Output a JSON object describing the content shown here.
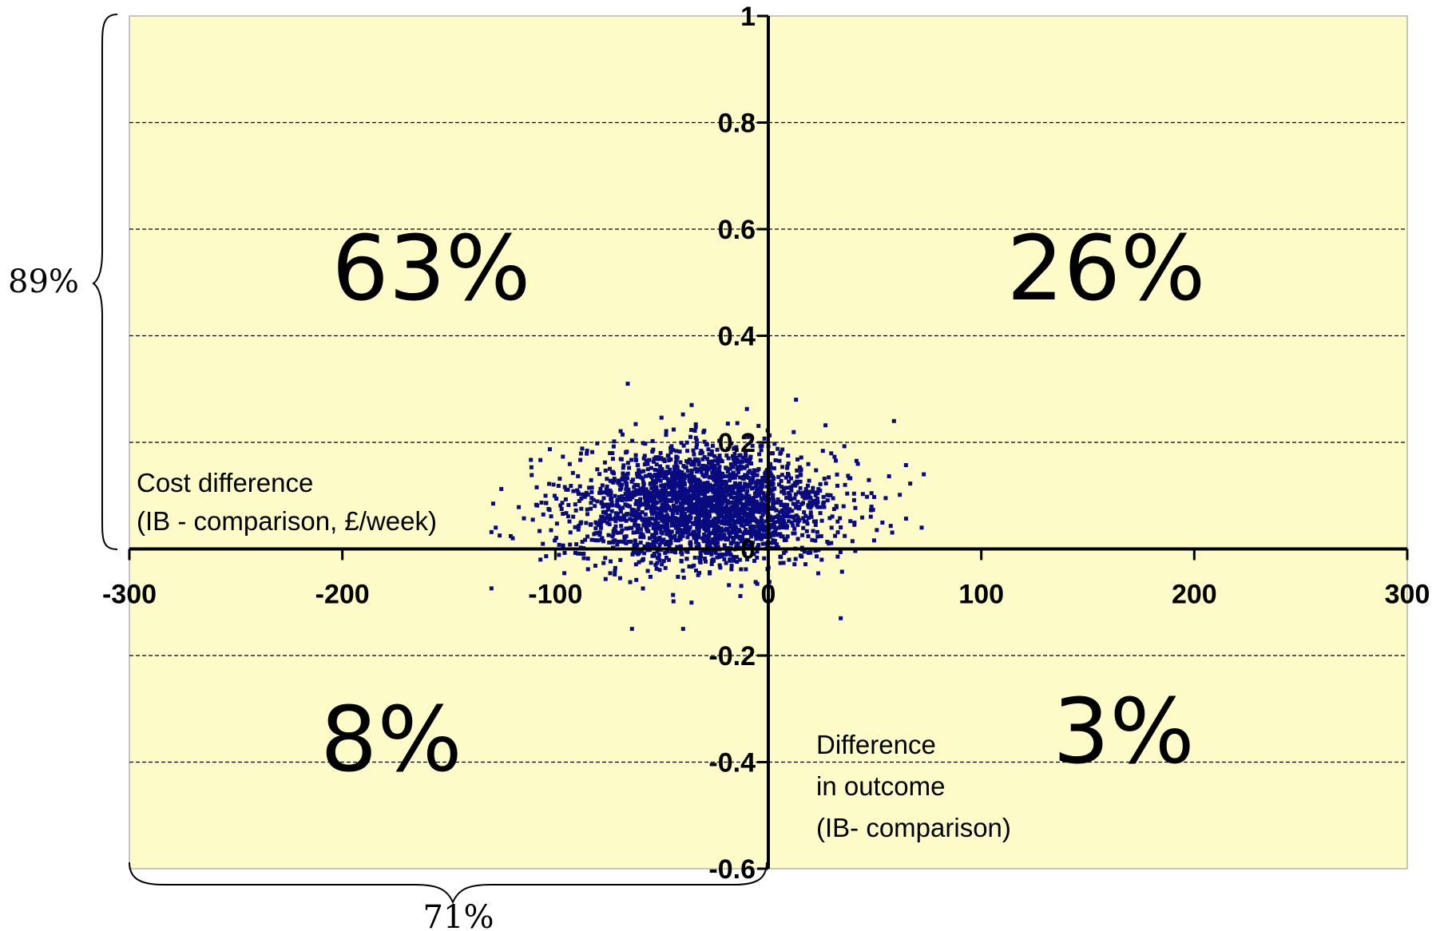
{
  "chart_data": {
    "type": "scatter",
    "title": "",
    "xlim": [
      -300,
      300
    ],
    "ylim": [
      -0.6,
      1
    ],
    "xticks": [
      -300,
      -200,
      -100,
      0,
      100,
      200,
      300
    ],
    "yticks": [
      1,
      0.8,
      0.6,
      0.4,
      0.2,
      0,
      -0.2,
      -0.4,
      -0.6
    ],
    "xtick_labels": [
      "-300",
      "-200",
      "-100",
      "0",
      "100",
      "200",
      "300"
    ],
    "ytick_labels": [
      "1",
      "0.8",
      "0.6",
      "0.4",
      "0.2",
      "0",
      "-0.2",
      "-0.4",
      "-0.6"
    ],
    "ylabel_lines": [
      "Cost difference",
      "(IB - comparison, £/week)"
    ],
    "xlabel_lines": [
      "Difference",
      "in outcome",
      "(IB- comparison)"
    ],
    "grid": "horizontal dashed",
    "background_color": "#fdfcc8",
    "point_color": "#0a0a80",
    "quadrant_labels": {
      "top_left": "63%",
      "top_right": "26%",
      "bottom_left": "8%",
      "bottom_right": "3%"
    },
    "brace_labels": {
      "left": "89%",
      "bottom": "71%"
    },
    "cloud": {
      "count": 2600,
      "center_x": -30,
      "center_y": 0.08,
      "sd_x": 30,
      "sd_y": 0.055,
      "x_range": [
        -130,
        75
      ],
      "y_range": [
        -0.15,
        0.31
      ]
    },
    "outliers": [
      {
        "x": -66,
        "y": 0.31
      },
      {
        "x": -36,
        "y": 0.27
      },
      {
        "x": 13,
        "y": 0.28
      },
      {
        "x": 59,
        "y": 0.24
      },
      {
        "x": 73,
        "y": 0.14
      },
      {
        "x": -128,
        "y": 0.04
      },
      {
        "x": -107,
        "y": -0.02
      },
      {
        "x": -64,
        "y": -0.15
      },
      {
        "x": -40,
        "y": -0.15
      },
      {
        "x": 34,
        "y": -0.13
      },
      {
        "x": 72,
        "y": 0.04
      },
      {
        "x": -120,
        "y": 0.02
      }
    ]
  }
}
